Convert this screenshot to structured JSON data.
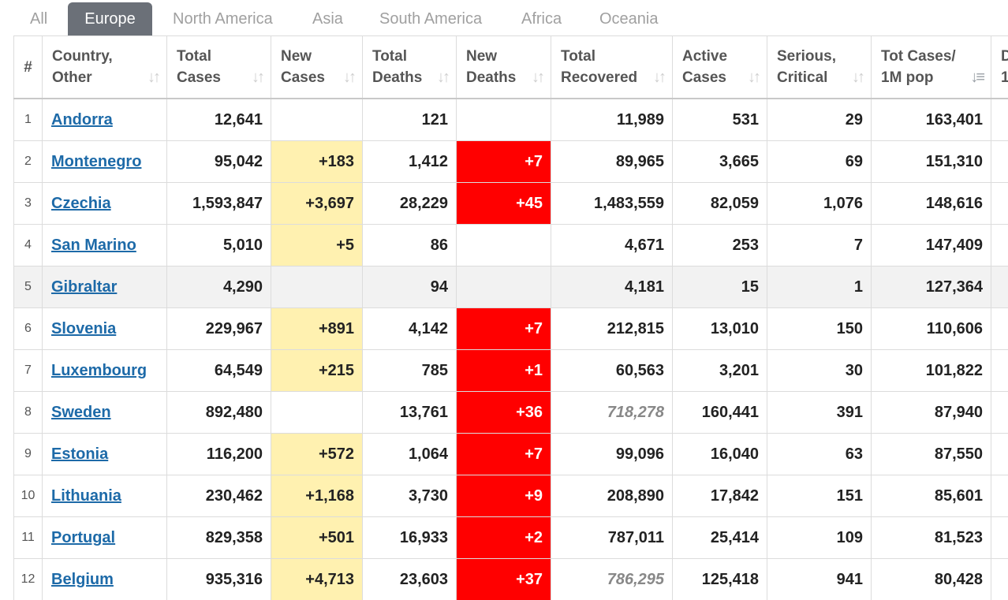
{
  "tabs": [
    {
      "label": "All",
      "active": false
    },
    {
      "label": "Europe",
      "active": true
    },
    {
      "label": "North America",
      "active": false
    },
    {
      "label": "Asia",
      "active": false
    },
    {
      "label": "South America",
      "active": false
    },
    {
      "label": "Africa",
      "active": false
    },
    {
      "label": "Oceania",
      "active": false
    }
  ],
  "columns": [
    {
      "line1": "#",
      "line2": ""
    },
    {
      "line1": "Country,",
      "line2": "Other"
    },
    {
      "line1": "Total",
      "line2": "Cases"
    },
    {
      "line1": "New",
      "line2": "Cases"
    },
    {
      "line1": "Total",
      "line2": "Deaths"
    },
    {
      "line1": "New",
      "line2": "Deaths"
    },
    {
      "line1": "Total",
      "line2": "Recovered"
    },
    {
      "line1": "Active",
      "line2": "Cases"
    },
    {
      "line1": "Serious,",
      "line2": "Critical"
    },
    {
      "line1": "Tot Cases/",
      "line2": "1M pop"
    },
    {
      "line1": "D",
      "line2": "1"
    }
  ],
  "sort_icon": "sort-arrows-icon",
  "active_sort_icon": "sort-descending-icon",
  "colors": {
    "new_cases_bg": "#fff1b0",
    "new_deaths_bg": "#ff0000",
    "link": "#1d6aa8",
    "active_tab": "#6b7078"
  },
  "rows": [
    {
      "idx": "1",
      "country": "Andorra",
      "total_cases": "12,641",
      "new_cases": "",
      "total_deaths": "121",
      "new_deaths": "",
      "total_recovered": "11,989",
      "recovered_estimated": false,
      "active_cases": "531",
      "serious": "29",
      "per_million": "163,401",
      "highlight": false
    },
    {
      "idx": "2",
      "country": "Montenegro",
      "total_cases": "95,042",
      "new_cases": "+183",
      "total_deaths": "1,412",
      "new_deaths": "+7",
      "total_recovered": "89,965",
      "recovered_estimated": false,
      "active_cases": "3,665",
      "serious": "69",
      "per_million": "151,310",
      "highlight": false
    },
    {
      "idx": "3",
      "country": "Czechia",
      "total_cases": "1,593,847",
      "new_cases": "+3,697",
      "total_deaths": "28,229",
      "new_deaths": "+45",
      "total_recovered": "1,483,559",
      "recovered_estimated": false,
      "active_cases": "82,059",
      "serious": "1,076",
      "per_million": "148,616",
      "highlight": false
    },
    {
      "idx": "4",
      "country": "San Marino",
      "total_cases": "5,010",
      "new_cases": "+5",
      "total_deaths": "86",
      "new_deaths": "",
      "total_recovered": "4,671",
      "recovered_estimated": false,
      "active_cases": "253",
      "serious": "7",
      "per_million": "147,409",
      "highlight": false
    },
    {
      "idx": "5",
      "country": "Gibraltar",
      "total_cases": "4,290",
      "new_cases": "",
      "total_deaths": "94",
      "new_deaths": "",
      "total_recovered": "4,181",
      "recovered_estimated": false,
      "active_cases": "15",
      "serious": "1",
      "per_million": "127,364",
      "highlight": true
    },
    {
      "idx": "6",
      "country": "Slovenia",
      "total_cases": "229,967",
      "new_cases": "+891",
      "total_deaths": "4,142",
      "new_deaths": "+7",
      "total_recovered": "212,815",
      "recovered_estimated": false,
      "active_cases": "13,010",
      "serious": "150",
      "per_million": "110,606",
      "highlight": false
    },
    {
      "idx": "7",
      "country": "Luxembourg",
      "total_cases": "64,549",
      "new_cases": "+215",
      "total_deaths": "785",
      "new_deaths": "+1",
      "total_recovered": "60,563",
      "recovered_estimated": false,
      "active_cases": "3,201",
      "serious": "30",
      "per_million": "101,822",
      "highlight": false
    },
    {
      "idx": "8",
      "country": "Sweden",
      "total_cases": "892,480",
      "new_cases": "",
      "total_deaths": "13,761",
      "new_deaths": "+36",
      "total_recovered": "718,278",
      "recovered_estimated": true,
      "active_cases": "160,441",
      "serious": "391",
      "per_million": "87,940",
      "highlight": false
    },
    {
      "idx": "9",
      "country": "Estonia",
      "total_cases": "116,200",
      "new_cases": "+572",
      "total_deaths": "1,064",
      "new_deaths": "+7",
      "total_recovered": "99,096",
      "recovered_estimated": false,
      "active_cases": "16,040",
      "serious": "63",
      "per_million": "87,550",
      "highlight": false
    },
    {
      "idx": "10",
      "country": "Lithuania",
      "total_cases": "230,462",
      "new_cases": "+1,168",
      "total_deaths": "3,730",
      "new_deaths": "+9",
      "total_recovered": "208,890",
      "recovered_estimated": false,
      "active_cases": "17,842",
      "serious": "151",
      "per_million": "85,601",
      "highlight": false
    },
    {
      "idx": "11",
      "country": "Portugal",
      "total_cases": "829,358",
      "new_cases": "+501",
      "total_deaths": "16,933",
      "new_deaths": "+2",
      "total_recovered": "787,011",
      "recovered_estimated": false,
      "active_cases": "25,414",
      "serious": "109",
      "per_million": "81,523",
      "highlight": false
    },
    {
      "idx": "12",
      "country": "Belgium",
      "total_cases": "935,316",
      "new_cases": "+4,713",
      "total_deaths": "23,603",
      "new_deaths": "+37",
      "total_recovered": "786,295",
      "recovered_estimated": true,
      "active_cases": "125,418",
      "serious": "941",
      "per_million": "80,428",
      "highlight": false
    }
  ]
}
